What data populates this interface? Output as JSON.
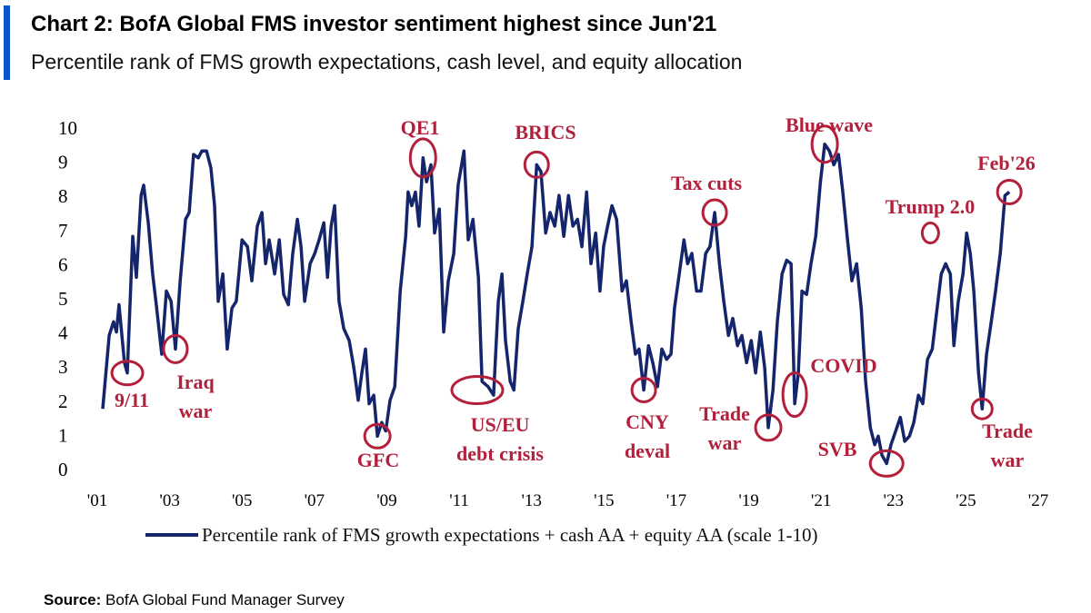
{
  "header": {
    "title": "Chart 2: BofA Global FMS investor sentiment highest since Jun'21",
    "subtitle": "Percentile rank of FMS growth expectations, cash level, and equity allocation"
  },
  "chart_data": {
    "type": "line",
    "x": [
      2001.15,
      2001.33,
      2001.45,
      2001.53,
      2001.6,
      2001.75,
      2001.83,
      2001.98,
      2002.08,
      2002.21,
      2002.28,
      2002.41,
      2002.53,
      2002.63,
      2002.78,
      2002.91,
      2003.04,
      2003.16,
      2003.29,
      2003.44,
      2003.54,
      2003.66,
      2003.79,
      2003.89,
      2004.02,
      2004.14,
      2004.24,
      2004.34,
      2004.47,
      2004.59,
      2004.72,
      2004.84,
      2005.0,
      2005.15,
      2005.27,
      2005.42,
      2005.55,
      2005.65,
      2005.75,
      2005.9,
      2006.03,
      2006.15,
      2006.28,
      2006.4,
      2006.53,
      2006.63,
      2006.73,
      2006.88,
      2007.01,
      2007.13,
      2007.26,
      2007.36,
      2007.46,
      2007.56,
      2007.68,
      2007.81,
      2007.96,
      2008.09,
      2008.21,
      2008.31,
      2008.41,
      2008.51,
      2008.64,
      2008.74,
      2008.86,
      2008.97,
      2009.09,
      2009.22,
      2009.37,
      2009.52,
      2009.59,
      2009.69,
      2009.79,
      2009.89,
      2010.0,
      2010.1,
      2010.22,
      2010.32,
      2010.45,
      2010.57,
      2010.7,
      2010.85,
      2010.97,
      2011.13,
      2011.25,
      2011.38,
      2011.53,
      2011.63,
      2011.8,
      2011.95,
      2012.08,
      2012.18,
      2012.28,
      2012.41,
      2012.51,
      2012.63,
      2012.76,
      2012.88,
      2013.01,
      2013.14,
      2013.26,
      2013.39,
      2013.51,
      2013.64,
      2013.76,
      2013.89,
      2014.02,
      2014.14,
      2014.27,
      2014.39,
      2014.52,
      2014.64,
      2014.77,
      2014.89,
      2014.99,
      2015.1,
      2015.22,
      2015.35,
      2015.5,
      2015.62,
      2015.75,
      2015.87,
      2015.97,
      2016.1,
      2016.23,
      2016.35,
      2016.48,
      2016.6,
      2016.73,
      2016.85,
      2016.95,
      2017.08,
      2017.21,
      2017.31,
      2017.43,
      2017.56,
      2017.68,
      2017.81,
      2017.93,
      2018.06,
      2018.19,
      2018.31,
      2018.44,
      2018.56,
      2018.69,
      2018.81,
      2018.94,
      2019.07,
      2019.19,
      2019.32,
      2019.44,
      2019.54,
      2019.67,
      2019.79,
      2019.92,
      2020.05,
      2020.17,
      2020.27,
      2020.37,
      2020.47,
      2020.6,
      2020.72,
      2020.85,
      2020.98,
      2021.1,
      2021.23,
      2021.35,
      2021.48,
      2021.6,
      2021.73,
      2021.85,
      2021.98,
      2022.11,
      2022.23,
      2022.36,
      2022.48,
      2022.58,
      2022.68,
      2022.81,
      2022.93,
      2023.06,
      2023.19,
      2023.31,
      2023.44,
      2023.56,
      2023.69,
      2023.81,
      2023.94,
      2024.07,
      2024.19,
      2024.32,
      2024.44,
      2024.57,
      2024.67,
      2024.79,
      2024.92,
      2025.02,
      2025.12,
      2025.22,
      2025.35,
      2025.45,
      2025.57,
      2025.7,
      2025.82,
      2025.95,
      2026.08,
      2026.2
    ],
    "series": [
      {
        "name": "Percentile rank of FMS growth expectations + cash AA + equity AA (scale 1-10)",
        "color": "#15256b",
        "values": [
          1.75,
          3.9,
          4.3,
          4.0,
          4.8,
          3.1,
          2.8,
          6.8,
          5.6,
          8.0,
          8.3,
          7.2,
          5.7,
          4.8,
          3.35,
          5.2,
          4.9,
          3.5,
          5.5,
          7.3,
          7.5,
          9.2,
          9.1,
          9.3,
          9.3,
          8.8,
          7.7,
          4.9,
          5.7,
          3.5,
          4.7,
          4.9,
          6.7,
          6.5,
          5.5,
          7.1,
          7.5,
          6.0,
          6.7,
          5.7,
          6.7,
          5.1,
          4.8,
          6.3,
          7.3,
          6.5,
          4.9,
          6.0,
          6.3,
          6.7,
          7.2,
          5.6,
          7.1,
          7.7,
          4.9,
          4.1,
          3.75,
          2.95,
          2.0,
          2.8,
          3.5,
          1.9,
          2.15,
          0.95,
          1.35,
          1.1,
          2.0,
          2.4,
          5.2,
          6.8,
          8.1,
          7.7,
          8.1,
          7.1,
          9.1,
          8.4,
          8.9,
          6.9,
          7.6,
          4.0,
          5.5,
          6.3,
          8.3,
          9.3,
          6.7,
          7.3,
          5.6,
          2.55,
          2.4,
          2.15,
          4.9,
          5.7,
          3.75,
          2.55,
          2.3,
          4.1,
          4.9,
          5.7,
          6.5,
          8.9,
          8.7,
          6.9,
          7.5,
          7.1,
          8.0,
          6.8,
          8.0,
          7.1,
          7.3,
          6.5,
          8.1,
          6.0,
          6.9,
          5.2,
          6.5,
          7.1,
          7.7,
          7.3,
          5.2,
          5.5,
          4.3,
          3.35,
          3.5,
          2.3,
          3.6,
          3.1,
          2.4,
          3.5,
          3.2,
          3.35,
          4.7,
          5.7,
          6.7,
          6.0,
          6.3,
          5.2,
          5.2,
          6.3,
          6.5,
          7.5,
          6.0,
          4.9,
          3.9,
          4.4,
          3.6,
          3.9,
          3.1,
          3.75,
          2.8,
          4.0,
          2.95,
          1.2,
          2.3,
          4.3,
          5.7,
          6.1,
          6.0,
          1.9,
          2.8,
          5.2,
          5.1,
          6.0,
          6.8,
          8.4,
          9.5,
          9.3,
          8.9,
          9.2,
          8.1,
          6.7,
          5.5,
          6.0,
          4.7,
          2.55,
          1.2,
          0.7,
          0.95,
          0.4,
          0.15,
          0.7,
          1.1,
          1.5,
          0.8,
          0.95,
          1.35,
          2.15,
          1.9,
          3.2,
          3.5,
          4.55,
          5.7,
          6.0,
          5.7,
          3.6,
          4.9,
          5.7,
          6.9,
          6.3,
          5.2,
          2.8,
          1.75,
          3.35,
          4.3,
          5.2,
          6.3,
          8.0,
          8.1
        ]
      }
    ],
    "xlim": [
      2001,
      2027
    ],
    "xticks": [
      {
        "value": 2001,
        "label": "'01"
      },
      {
        "value": 2003,
        "label": "'03"
      },
      {
        "value": 2005,
        "label": "'05"
      },
      {
        "value": 2007,
        "label": "'07"
      },
      {
        "value": 2009,
        "label": "'09"
      },
      {
        "value": 2011,
        "label": "'11"
      },
      {
        "value": 2013,
        "label": "'13"
      },
      {
        "value": 2015,
        "label": "'15"
      },
      {
        "value": 2017,
        "label": "'17"
      },
      {
        "value": 2019,
        "label": "'19"
      },
      {
        "value": 2021,
        "label": "'21"
      },
      {
        "value": 2023,
        "label": "'23"
      },
      {
        "value": 2025,
        "label": "'25"
      },
      {
        "value": 2027,
        "label": "'27"
      }
    ],
    "ylim": [
      0,
      10
    ],
    "yticks": [
      0,
      1,
      2,
      3,
      4,
      5,
      6,
      7,
      8,
      9,
      10
    ],
    "grid": false,
    "legend": "bottom",
    "annotation_color": "#b3203c",
    "annotations": [
      {
        "text": [
          "9/11"
        ],
        "x": 2001.83,
        "y": 2.8
      },
      {
        "text": [
          "Iraq",
          "war"
        ],
        "x": 2003.16,
        "y": 3.5
      },
      {
        "text": [
          "GFC"
        ],
        "x": 2008.74,
        "y": 0.95
      },
      {
        "text": [
          "QE1"
        ],
        "x": 2010.0,
        "y": 9.1
      },
      {
        "text": [
          "US/EU",
          "debt crisis"
        ],
        "x": 2011.5,
        "y": 2.3
      },
      {
        "text": [
          "BRICS"
        ],
        "x": 2013.14,
        "y": 8.9
      },
      {
        "text": [
          "CNY",
          "deval"
        ],
        "x": 2016.1,
        "y": 2.3
      },
      {
        "text": [
          "Tax cuts"
        ],
        "x": 2018.06,
        "y": 7.5
      },
      {
        "text": [
          "Trade",
          "war"
        ],
        "x": 2019.54,
        "y": 1.2
      },
      {
        "text": [
          "COVID"
        ],
        "x": 2020.27,
        "y": 1.9
      },
      {
        "text": [
          "Blue wave"
        ],
        "x": 2021.1,
        "y": 9.5
      },
      {
        "text": [
          "SVB"
        ],
        "x": 2022.81,
        "y": 0.15
      },
      {
        "text": [
          "Trump 2.0"
        ],
        "x": 2024.02,
        "y": 6.9
      },
      {
        "text": [
          "Trade",
          "war"
        ],
        "x": 2025.45,
        "y": 1.75
      },
      {
        "text": [
          "Feb'26"
        ],
        "x": 2026.2,
        "y": 8.1
      }
    ]
  },
  "source": {
    "label": "Source:",
    "text": "BofA Global Fund Manager Survey"
  }
}
